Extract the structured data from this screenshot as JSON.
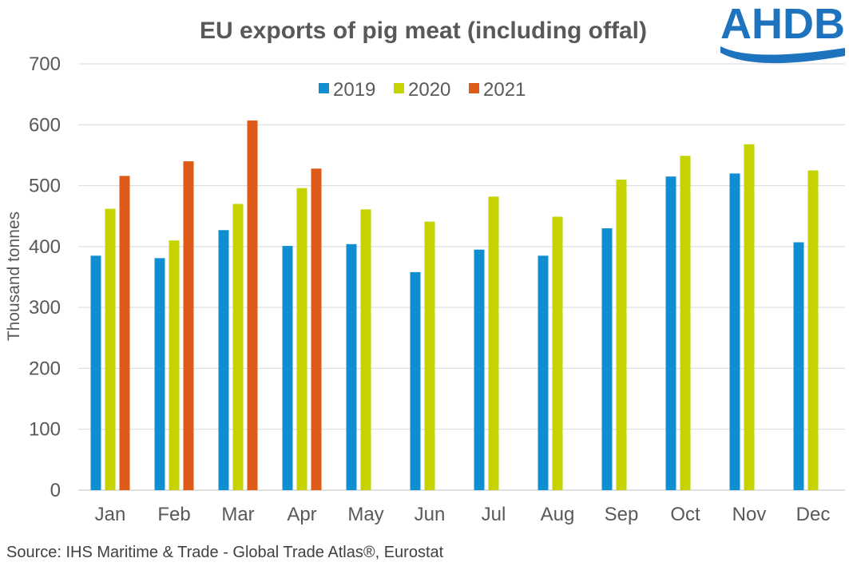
{
  "chart_data": {
    "type": "bar",
    "title": "EU exports of pig meat (including offal)",
    "xlabel": "",
    "ylabel": "Thousand tonnes",
    "ylim": [
      0,
      700
    ],
    "yticks": [
      0,
      100,
      200,
      300,
      400,
      500,
      600,
      700
    ],
    "grid": true,
    "legend_position": "top-center",
    "categories": [
      "Jan",
      "Feb",
      "Mar",
      "Apr",
      "May",
      "Jun",
      "Jul",
      "Aug",
      "Sep",
      "Oct",
      "Nov",
      "Dec"
    ],
    "series": [
      {
        "name": "2019",
        "color": "#0f8fd2",
        "values": [
          385,
          381,
          427,
          401,
          404,
          358,
          395,
          385,
          430,
          515,
          520,
          407
        ]
      },
      {
        "name": "2020",
        "color": "#c5d300",
        "values": [
          462,
          410,
          470,
          496,
          461,
          441,
          482,
          449,
          510,
          549,
          568,
          525
        ]
      },
      {
        "name": "2021",
        "color": "#dd5a17",
        "values": [
          516,
          540,
          607,
          528,
          null,
          null,
          null,
          null,
          null,
          null,
          null,
          null
        ]
      }
    ]
  },
  "source": "Source: IHS Maritime & Trade - Global Trade Atlas®, Eurostat",
  "logo": {
    "text": "AHDB",
    "color": "#1e73be"
  }
}
